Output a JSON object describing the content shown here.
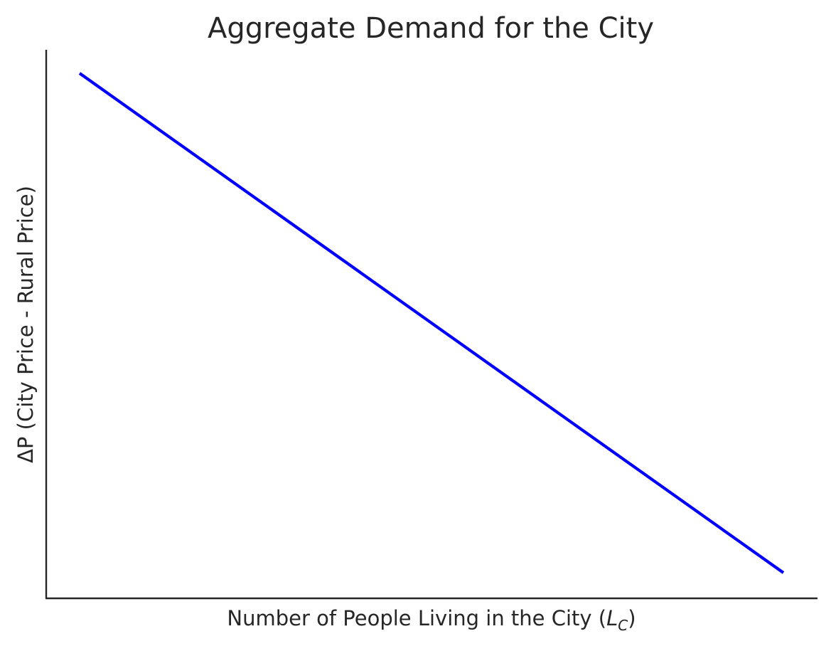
{
  "chart_data": {
    "type": "line",
    "title": "Aggregate Demand for the City",
    "xlabel": {
      "main": "Number of People Living in the City (",
      "symbol": "L",
      "subscript": "C",
      "close": ")"
    },
    "ylabel": "ΔP (City Price - Rural Price)",
    "xlim": [
      0,
      100
    ],
    "ylim": [
      0,
      100
    ],
    "grid": false,
    "legend": "none",
    "series": [
      {
        "color": "#0000ff",
        "x": [
          0,
          100
        ],
        "y": [
          100,
          0
        ]
      }
    ]
  }
}
